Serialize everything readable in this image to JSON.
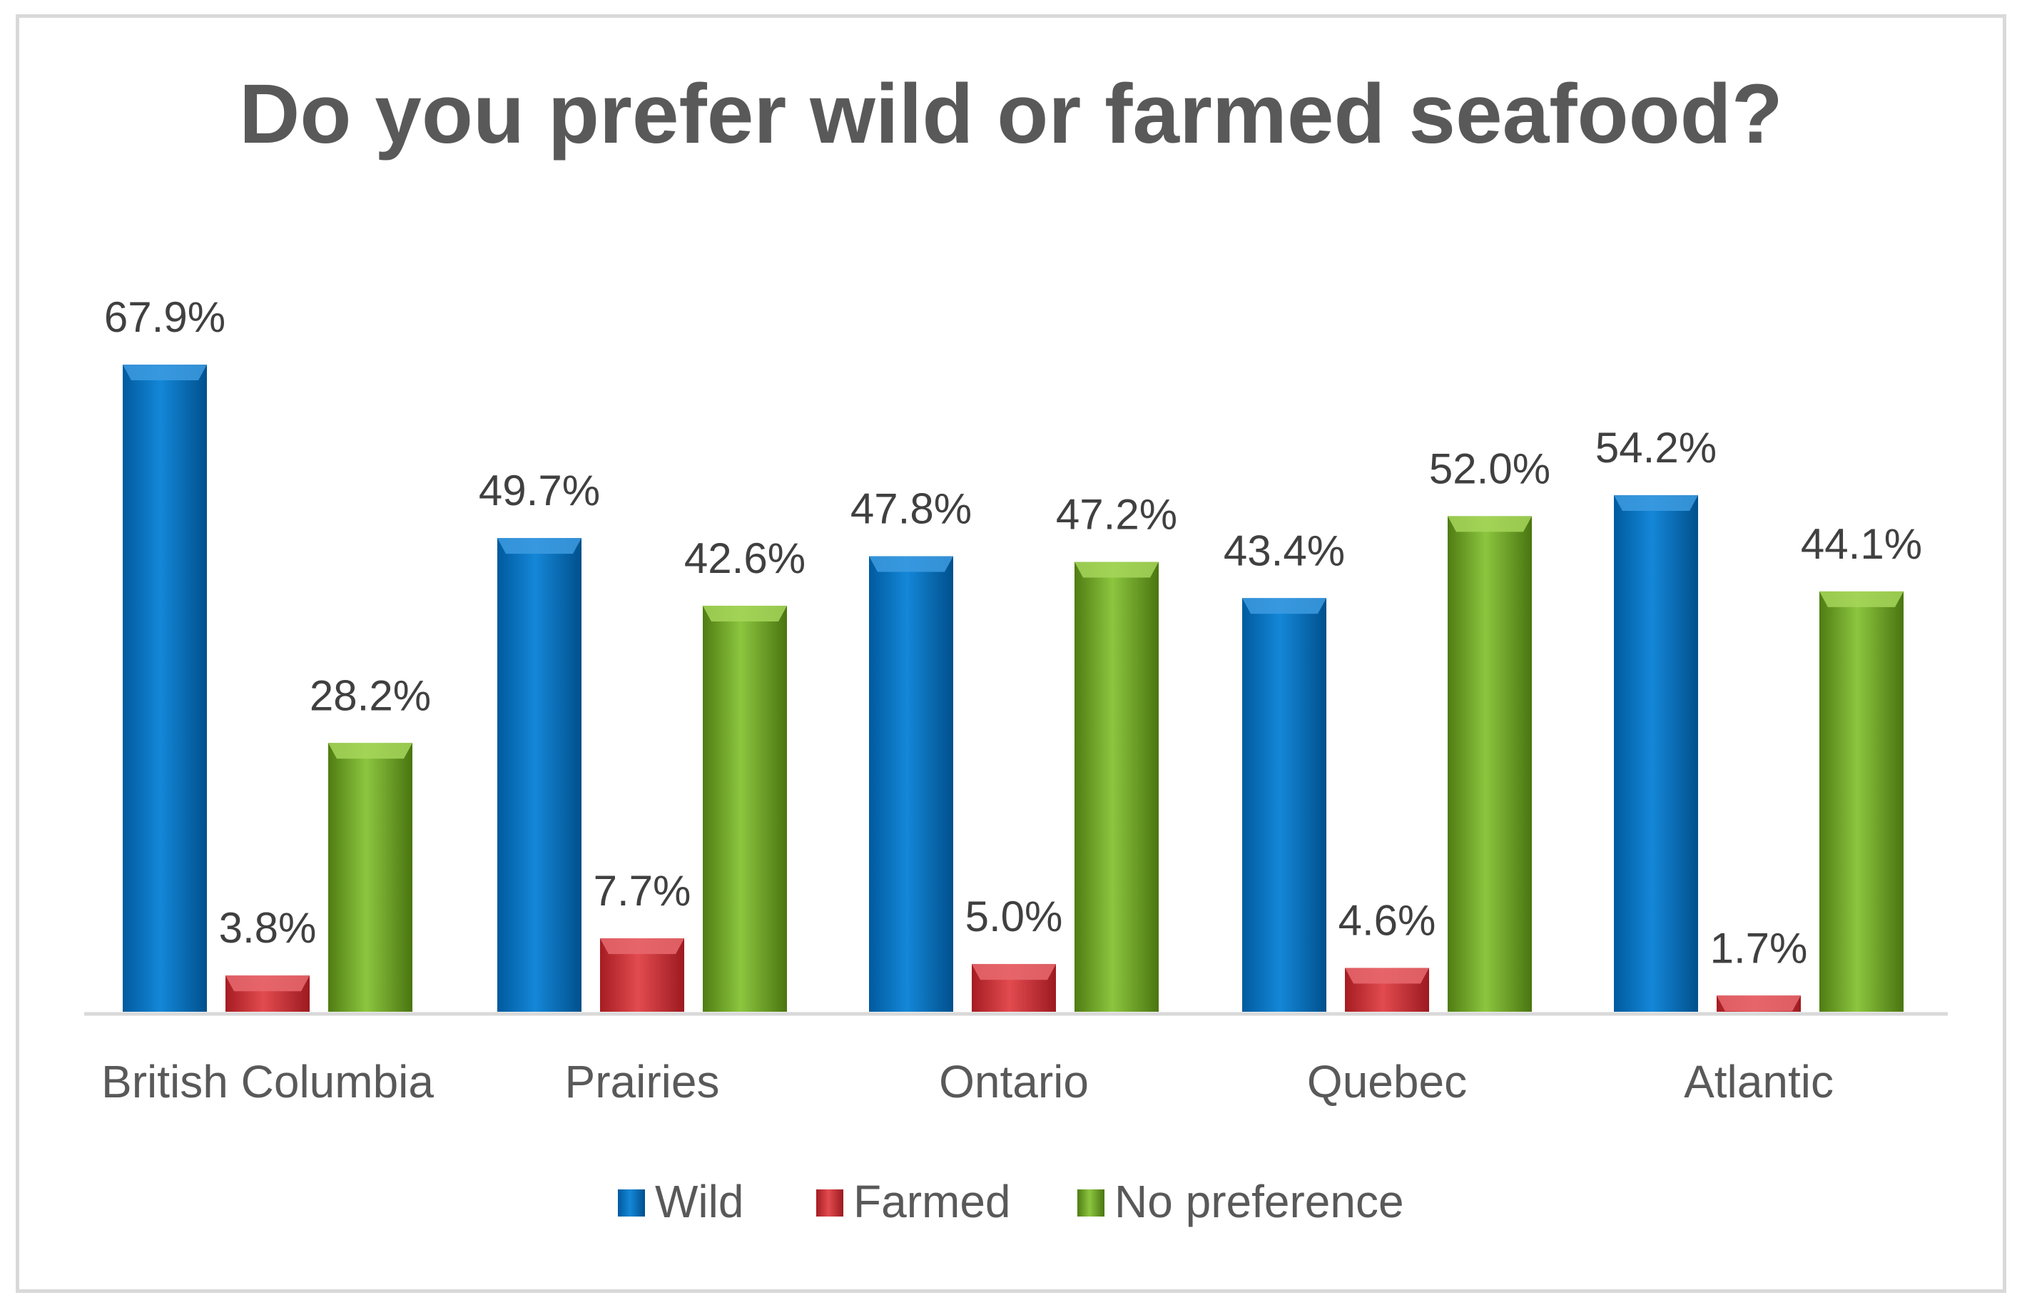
{
  "chart_data": {
    "type": "bar",
    "title": "Do you prefer wild or farmed seafood?",
    "categories": [
      "British Columbia",
      "Prairies",
      "Ontario",
      "Quebec",
      "Atlantic"
    ],
    "series": [
      {
        "name": "Wild",
        "values": [
          67.9,
          49.7,
          47.8,
          43.4,
          54.2
        ],
        "labels": [
          "67.9%",
          "49.7%",
          "47.8%",
          "43.4%",
          "54.2%"
        ],
        "color": "#0070c0"
      },
      {
        "name": "Farmed",
        "values": [
          3.8,
          7.7,
          5.0,
          4.6,
          1.7
        ],
        "labels": [
          "3.8%",
          "7.7%",
          "5.0%",
          "4.6%",
          "1.7%"
        ],
        "color": "#c0272d"
      },
      {
        "name": "No preference",
        "values": [
          28.2,
          42.6,
          47.2,
          52.0,
          44.1
        ],
        "labels": [
          "28.2%",
          "42.6%",
          "47.2%",
          "52.0%",
          "44.1%"
        ],
        "color": "#70a020"
      }
    ],
    "ylim": [
      0,
      70
    ],
    "xlabel": "",
    "ylabel": "",
    "grid": false,
    "legend": "bottom"
  }
}
